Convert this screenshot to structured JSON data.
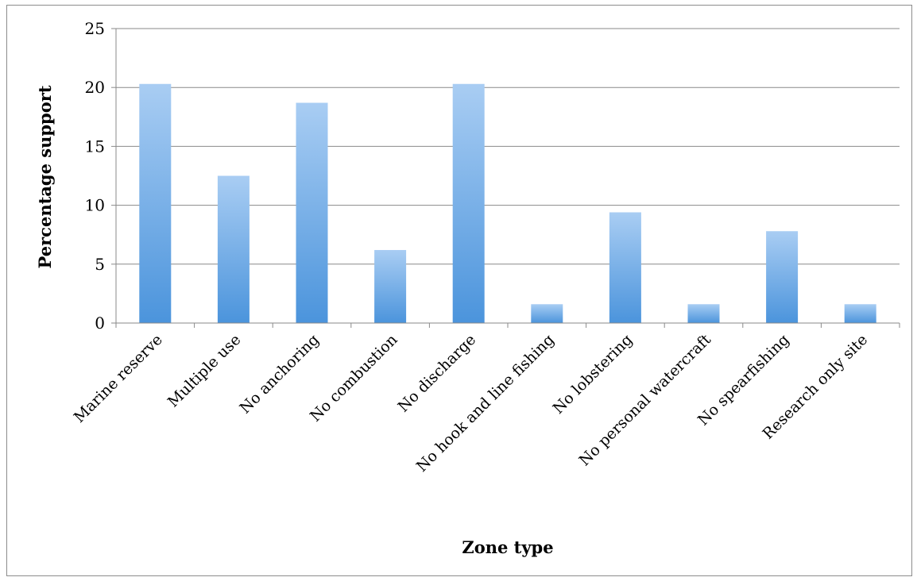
{
  "chart_data": {
    "type": "bar",
    "title": "",
    "xlabel": "Zone type",
    "ylabel": "Percentage support",
    "categories": [
      "Marine reserve",
      "Multiple use",
      "No anchoring",
      "No combustion",
      "No discharge",
      "No hook and line fishing",
      "No lobstering",
      "No personal watercraft",
      "No spearfishing",
      "Research only site"
    ],
    "values": [
      20.3,
      12.5,
      18.7,
      6.2,
      20.3,
      1.6,
      9.4,
      1.6,
      7.8,
      1.6
    ],
    "ylim": [
      0,
      25
    ],
    "yticks": [
      "0",
      "5",
      "10",
      "15",
      "20",
      "25"
    ],
    "grid": true,
    "legend": "none",
    "bar_color_top": "#a9cdf3",
    "bar_color_bottom": "#4b94dc"
  }
}
